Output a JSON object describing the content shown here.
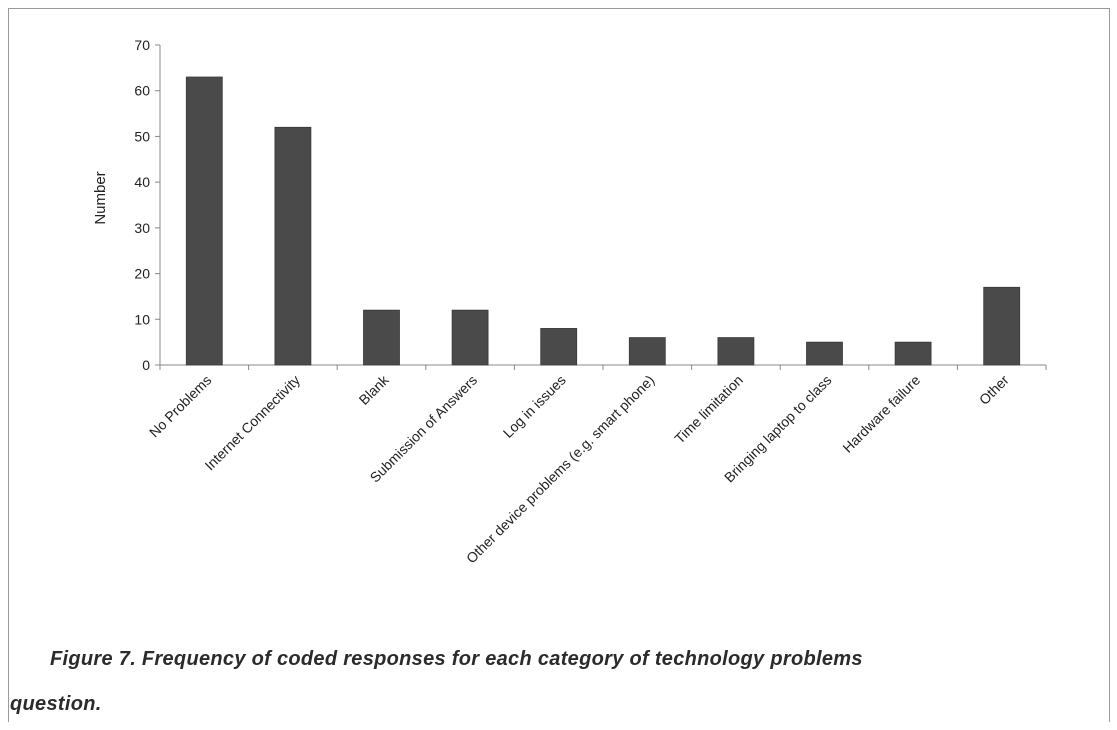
{
  "caption": {
    "line1": "Figure 7. Frequency of coded responses for each category of technology problems",
    "line2": "question."
  },
  "colors": {
    "bar": "#4a4a4a",
    "axis": "#888888",
    "text": "#222222"
  },
  "chart_data": {
    "type": "bar",
    "title": "",
    "xlabel": "",
    "ylabel": "Number",
    "ylim": [
      0,
      70
    ],
    "yticks": [
      0,
      10,
      20,
      30,
      40,
      50,
      60,
      70
    ],
    "grid": false,
    "legend": "none",
    "categories": [
      "No Problems",
      "Internet Connectivity",
      "Blank",
      "Submission of Answers",
      "Log in issues",
      "Other device problems (e.g. smart phone)",
      "Time limitation",
      "Bringing laptop to class",
      "Hardware failure",
      "Other"
    ],
    "values": [
      63,
      52,
      12,
      12,
      8,
      6,
      6,
      5,
      5,
      17
    ]
  }
}
